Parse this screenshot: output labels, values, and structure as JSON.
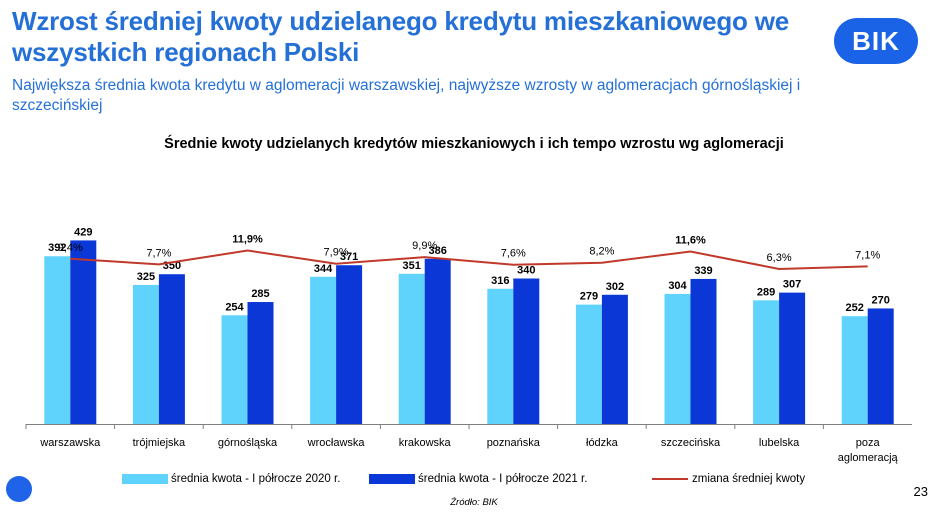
{
  "title": "Wzrost średniej kwoty udzielanego kredytu mieszkaniowego we wszystkich regionach Polski",
  "subtitle": "Największa średnia kwota kredytu w aglomeracji warszawskiej, najwyższe wzrosty w aglomeracjach górnośląskiej i szczecińskiej",
  "logo_text": "BIK",
  "source": "Źródło: BIK",
  "page_number": "23",
  "colors": {
    "title": "#2470d6",
    "series_2020": "#5fd3fb",
    "series_2021": "#0a37d6",
    "growth_line": "#c0392b"
  },
  "chart_data": {
    "type": "bar",
    "title": "Średnie kwoty udzielanych kredytów mieszkaniowych i ich tempo wzrostu wg aglomeracji",
    "categories": [
      "warszawska",
      "trójmiejska",
      "górnośląska",
      "wrocławska",
      "krakowska",
      "poznańska",
      "łódzka",
      "szczecińska",
      "lubelska",
      "poza aglomeracją"
    ],
    "series": [
      {
        "name": "średnia kwota - I półrocze 2020 r.",
        "values": [
          392,
          325,
          254,
          344,
          351,
          316,
          279,
          304,
          289,
          252
        ]
      },
      {
        "name": "średnia kwota - I półrocze 2021 r.",
        "values": [
          429,
          350,
          285,
          371,
          386,
          340,
          302,
          339,
          307,
          270
        ]
      }
    ],
    "line_series": {
      "name": "zmiana średniej kwoty",
      "values": [
        9.4,
        7.7,
        11.9,
        7.9,
        9.9,
        7.6,
        8.2,
        11.6,
        6.3,
        7.1
      ],
      "labels": [
        "9,4%",
        "7,7%",
        "11,9%",
        "7,9%",
        "9,9%",
        "7,6%",
        "8,2%",
        "11,6%",
        "6,3%",
        "7,1%"
      ]
    },
    "ylim": [
      0,
      450
    ],
    "legend": "bottom"
  }
}
